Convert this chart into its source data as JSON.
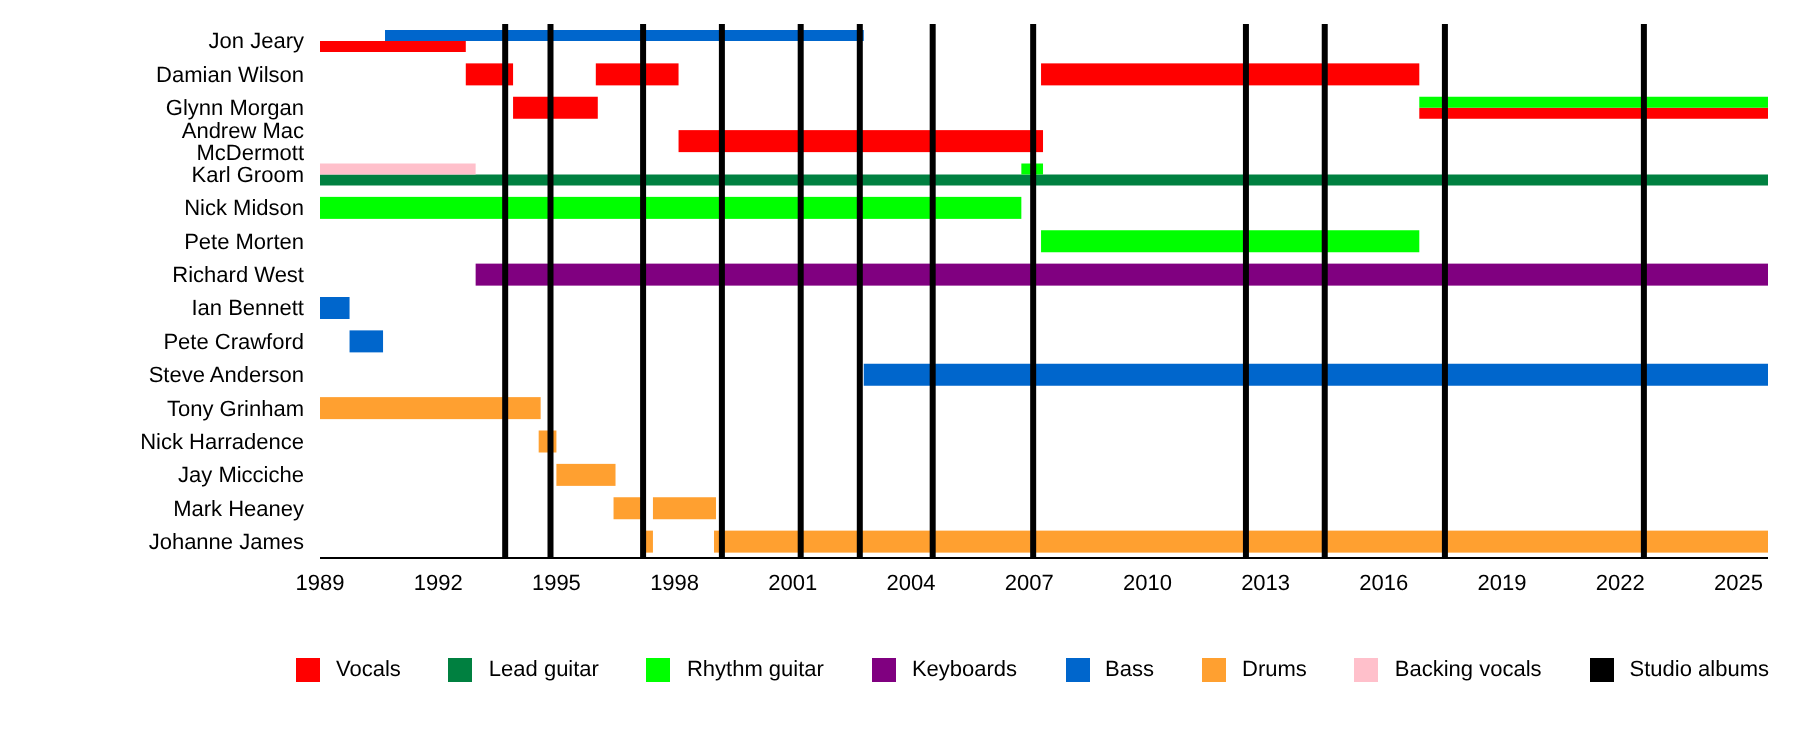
{
  "chart_data": {
    "type": "bar",
    "orientation": "horizontal",
    "legend": "bottom",
    "grid": false,
    "categories": [
      "Jon Jeary",
      "Damian Wilson",
      "Glynn Morgan",
      "Andrew Mac McDermott",
      "Karl Groom",
      "Nick Midson",
      "Pete Morten",
      "Richard West",
      "Ian Bennett",
      "Pete Crawford",
      "Steve Anderson",
      "Tony Grinham",
      "Nick Harradence",
      "Jay Micciche",
      "Mark Heaney",
      "Johanne James"
    ],
    "xlim": [
      1989,
      2025.75
    ],
    "xticks": [
      1989,
      1992,
      1995,
      1998,
      2001,
      2004,
      2007,
      2010,
      2013,
      2016,
      2019,
      2022,
      2025
    ],
    "series": [
      {
        "name": "Vocals",
        "color": "#ff0000",
        "values": [
          3.7,
          1.2,
          2.15,
          9.25,
          null,
          null,
          null,
          null,
          null,
          null,
          null,
          null,
          null,
          null,
          null,
          null
        ],
        "base": [
          1989,
          1992.7,
          1993.9,
          1998.1,
          null,
          null,
          null,
          null,
          null,
          null,
          null,
          null,
          null,
          null,
          null,
          null
        ]
      },
      {
        "color": "#ff0000",
        "values": [
          null,
          2.1,
          null,
          null,
          null,
          null,
          null,
          null,
          null,
          null,
          null,
          null,
          null,
          null,
          null,
          null
        ],
        "base": [
          null,
          1996.0,
          null,
          null,
          null,
          null,
          null,
          null,
          null,
          null,
          null,
          null,
          null,
          null,
          null,
          null
        ]
      },
      {
        "color": "#ff0000",
        "values": [
          null,
          9.6,
          8.85,
          null,
          null,
          null,
          null,
          null,
          null,
          null,
          null,
          null,
          null,
          null,
          null,
          null
        ],
        "base": [
          null,
          2007.3,
          2016.9,
          null,
          null,
          null,
          null,
          null,
          null,
          null,
          null,
          null,
          null,
          null,
          null,
          null
        ]
      },
      {
        "name": "Lead guitar",
        "color": "#008040",
        "values": [
          null,
          null,
          null,
          null,
          36.75,
          null,
          null,
          null,
          null,
          null,
          null,
          null,
          null,
          null,
          null,
          null
        ],
        "base": [
          null,
          null,
          null,
          null,
          1989,
          null,
          null,
          null,
          null,
          null,
          null,
          null,
          null,
          null,
          null,
          null
        ]
      },
      {
        "name": "Rhythm guitar",
        "color": "#00ff00",
        "values": [
          null,
          null,
          8.85,
          null,
          0.55,
          17.8,
          9.6,
          null,
          null,
          null,
          null,
          null,
          null,
          null,
          null,
          null
        ],
        "base": [
          null,
          null,
          2016.9,
          null,
          2006.8,
          1989,
          2007.3,
          null,
          null,
          null,
          null,
          null,
          null,
          null,
          null,
          null
        ]
      },
      {
        "name": "Keyboards",
        "color": "#800080",
        "values": [
          null,
          null,
          null,
          null,
          null,
          null,
          null,
          32.8,
          null,
          null,
          null,
          null,
          null,
          null,
          null,
          null
        ],
        "base": [
          null,
          null,
          null,
          null,
          null,
          null,
          null,
          1992.95,
          null,
          null,
          null,
          null,
          null,
          null,
          null,
          null
        ]
      },
      {
        "name": "Bass",
        "color": "#0066cc",
        "values": [
          12.15,
          null,
          null,
          null,
          null,
          null,
          null,
          null,
          0.75,
          0.85,
          22.95,
          null,
          null,
          null,
          null,
          null
        ],
        "base": [
          1990.65,
          null,
          null,
          null,
          null,
          null,
          null,
          null,
          1989,
          1989.75,
          2002.8,
          null,
          null,
          null,
          null,
          null
        ]
      },
      {
        "name": "Drums",
        "color": "#ffa030",
        "values": [
          null,
          null,
          null,
          null,
          null,
          null,
          null,
          null,
          null,
          null,
          null,
          5.6,
          0.45,
          1.5,
          0.8,
          0.25
        ],
        "base": [
          null,
          null,
          null,
          null,
          null,
          null,
          null,
          null,
          null,
          null,
          null,
          1989,
          1994.55,
          1995,
          1996.45,
          1997.2
        ]
      },
      {
        "color": "#ffa030",
        "values": [
          null,
          null,
          null,
          null,
          null,
          null,
          null,
          null,
          null,
          null,
          null,
          null,
          null,
          null,
          1.6,
          26.75
        ],
        "base": [
          null,
          null,
          null,
          null,
          null,
          null,
          null,
          null,
          null,
          null,
          null,
          null,
          null,
          null,
          1997.45,
          1999
        ]
      },
      {
        "name": "Backing vocals",
        "color": "#ffc0cb",
        "values": [
          null,
          null,
          null,
          null,
          3.95,
          null,
          null,
          null,
          null,
          null,
          null,
          null,
          null,
          null,
          null,
          null
        ],
        "base": [
          null,
          null,
          null,
          null,
          1989,
          null,
          null,
          null,
          null,
          null,
          null,
          null,
          null,
          null,
          null,
          null
        ]
      }
    ],
    "ref_lines": [
      {
        "axis": "x",
        "value": 1993.7,
        "color": "#000000"
      },
      {
        "axis": "x",
        "value": 1994.85,
        "color": "#000000"
      },
      {
        "axis": "x",
        "value": 1997.2,
        "color": "#000000"
      },
      {
        "axis": "x",
        "value": 1999.2,
        "color": "#000000"
      },
      {
        "axis": "x",
        "value": 2001.2,
        "color": "#000000"
      },
      {
        "axis": "x",
        "value": 2002.7,
        "color": "#000000"
      },
      {
        "axis": "x",
        "value": 2004.55,
        "color": "#000000"
      },
      {
        "axis": "x",
        "value": 2007.1,
        "color": "#000000"
      },
      {
        "axis": "x",
        "value": 2012.5,
        "color": "#000000"
      },
      {
        "axis": "x",
        "value": 2014.5,
        "color": "#000000"
      },
      {
        "axis": "x",
        "value": 2017.55,
        "color": "#000000"
      },
      {
        "axis": "x",
        "value": 2022.6,
        "color": "#000000"
      }
    ],
    "annotations": [
      "Studio albums"
    ]
  }
}
